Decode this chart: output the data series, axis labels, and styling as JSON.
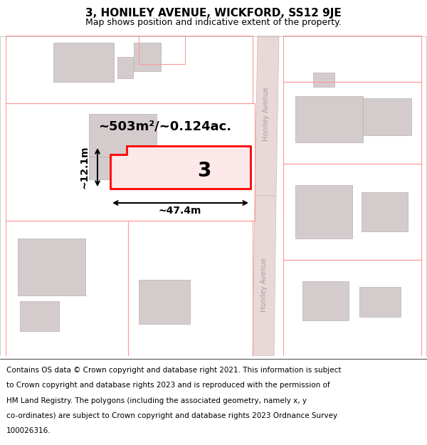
{
  "title": "3, HONILEY AVENUE, WICKFORD, SS12 9JE",
  "subtitle": "Map shows position and indicative extent of the property.",
  "footer_lines": [
    "Contains OS data © Crown copyright and database right 2021. This information is subject",
    "to Crown copyright and database rights 2023 and is reproduced with the permission of",
    "HM Land Registry. The polygons (including the associated geometry, namely x, y",
    "co-ordinates) are subject to Crown copyright and database rights 2023 Ordnance Survey",
    "100026316."
  ],
  "background_color": "#ffffff",
  "map_bg": "#f5f0f0",
  "plot_color_fill": "#fce8e8",
  "plot_color_edge": "#ff0000",
  "road_fill": "#e8d8d8",
  "road_edge": "#d0b8b8",
  "building_fill": "#d4cccc",
  "building_edge": "#b8b0b0",
  "lot_edge": "#ff9999",
  "area_text": "~503m²/~0.124ac.",
  "width_text": "~47.4m",
  "height_text": "~12.1m",
  "number_text": "3",
  "road_label": "Honiley Avenue",
  "title_fontsize": 11,
  "subtitle_fontsize": 9,
  "footer_fontsize": 7.5
}
